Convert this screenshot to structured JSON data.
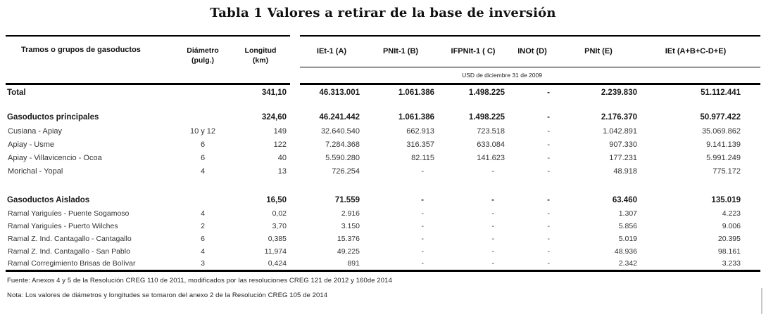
{
  "title": "Tabla 1 Valores a retirar de la base de inversión",
  "table": {
    "header": {
      "tramos": "Tramos o grupos de gasoductos",
      "diametro": "Diámetro",
      "diametro_unit": "(pulg.)",
      "longitud": "Longitud",
      "longitud_unit": "(km)",
      "col_a": "IEt-1 (A)",
      "col_b": "PNIt-1 (B)",
      "col_c": "IFPNIt-1 ( C)",
      "col_d": "INOt (D)",
      "col_e": "PNIt (E)",
      "col_f": "IEt (A+B+C-D+E)",
      "currency_note": "USD de diciembre 31 de 2009"
    },
    "rows": [
      {
        "type": "total",
        "name": "Total",
        "diam": "",
        "long": "341,10",
        "a": "46.313.001",
        "b": "1.061.386",
        "c": "1.498.225",
        "d": "-",
        "e": "2.239.830",
        "f": "51.112.441"
      },
      {
        "type": "spacer"
      },
      {
        "type": "section",
        "name": "Gasoductos principales",
        "diam": "",
        "long": "324,60",
        "a": "46.241.442",
        "b": "1.061.386",
        "c": "1.498.225",
        "d": "-",
        "e": "2.176.370",
        "f": "50.977.422"
      },
      {
        "type": "item",
        "name": "Cusiana - Apiay",
        "diam": "10 y 12",
        "long": "149",
        "a": "32.640.540",
        "b": "662.913",
        "c": "723.518",
        "d": "-",
        "e": "1.042.891",
        "f": "35.069.862"
      },
      {
        "type": "item",
        "name": "Apiay - Usme",
        "diam": "6",
        "long": "122",
        "a": "7.284.368",
        "b": "316.357",
        "c": "633.084",
        "d": "-",
        "e": "907.330",
        "f": "9.141.139"
      },
      {
        "type": "item",
        "name": "Apiay - Villavicencio - Ocoa",
        "diam": "6",
        "long": "40",
        "a": "5.590.280",
        "b": "82.115",
        "c": "141.623",
        "d": "-",
        "e": "177.231",
        "f": "5.991.249"
      },
      {
        "type": "item",
        "name": "Morichal - Yopal",
        "diam": "4",
        "long": "13",
        "a": "726.254",
        "b": "-",
        "c": "-",
        "d": "-",
        "e": "48.918",
        "f": "775.172"
      },
      {
        "type": "spacer2"
      },
      {
        "type": "section",
        "name": "Gasoductos Aislados",
        "diam": "",
        "long": "16,50",
        "a": "71.559",
        "b": "-",
        "c": "-",
        "d": "-",
        "e": "63.460",
        "f": "135.019"
      },
      {
        "type": "item2",
        "name": "Ramal Yariguíes - Puente Sogamoso",
        "diam": "4",
        "long": "0,02",
        "a": "2.916",
        "b": "-",
        "c": "-",
        "d": "-",
        "e": "1.307",
        "f": "4.223"
      },
      {
        "type": "item2",
        "name": "Ramal Yariguíes - Puerto Wilches",
        "diam": "2",
        "long": "3,70",
        "a": "3.150",
        "b": "-",
        "c": "-",
        "d": "-",
        "e": "5.856",
        "f": "9.006"
      },
      {
        "type": "item2",
        "name": "Ramal Z. Ind. Cantagallo - Cantagallo",
        "diam": "6",
        "long": "0,385",
        "a": "15.376",
        "b": "-",
        "c": "-",
        "d": "-",
        "e": "5.019",
        "f": "20.395"
      },
      {
        "type": "item2",
        "name": "Ramal Z. Ind. Cantagallo - San Pablo",
        "diam": "4",
        "long": "11,974",
        "a": "49.225",
        "b": "-",
        "c": "-",
        "d": "-",
        "e": "48.936",
        "f": "98.161"
      },
      {
        "type": "item2",
        "name": "Ramal Corregimiento Brisas de Bolívar",
        "diam": "3",
        "long": "0,424",
        "a": "891",
        "b": "-",
        "c": "-",
        "d": "-",
        "e": "2.342",
        "f": "3.233"
      }
    ]
  },
  "footnotes": {
    "fuente": "Fuente: Anexos 4 y 5 de la Resolución CREG 110 de 2011, modificados por las resoluciones CREG 121 de 2012 y 160de 2014",
    "nota": "Nota: Los valores de diámetros y longitudes se tomaron del anexo 2 de la Resolución CREG 105 de 2014"
  }
}
